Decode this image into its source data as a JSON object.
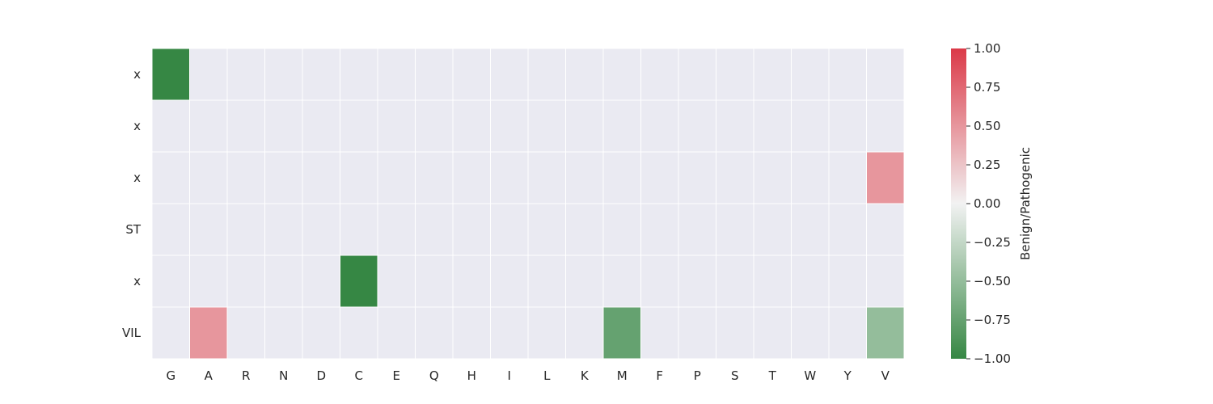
{
  "chart_data": {
    "type": "heatmap",
    "title": "",
    "xlabel": "",
    "ylabel": "",
    "x_categories": [
      "G",
      "A",
      "R",
      "N",
      "D",
      "C",
      "E",
      "Q",
      "H",
      "I",
      "L",
      "K",
      "M",
      "F",
      "P",
      "S",
      "T",
      "W",
      "Y",
      "V"
    ],
    "y_categories": [
      "x",
      "x",
      "x",
      "ST",
      "x",
      "VIL"
    ],
    "cells": [
      {
        "row": 0,
        "col": 0,
        "value": -1.0
      },
      {
        "row": 2,
        "col": 19,
        "value": 0.5
      },
      {
        "row": 4,
        "col": 5,
        "value": -1.0
      },
      {
        "row": 5,
        "col": 1,
        "value": 0.5
      },
      {
        "row": 5,
        "col": 12,
        "value": -0.75
      },
      {
        "row": 5,
        "col": 19,
        "value": -0.5
      }
    ],
    "empty_cell_color": "#EAEAF2",
    "colorbar": {
      "label": "Benign/Pathogenic",
      "vmin": -1.0,
      "vmax": 1.0,
      "ticks": [
        1.0,
        0.75,
        0.5,
        0.25,
        0.0,
        -0.25,
        -0.5,
        -0.75,
        -1.0
      ],
      "tick_labels": [
        "1.00",
        "0.75",
        "0.50",
        "0.25",
        "0.00",
        "−0.25",
        "−0.50",
        "−0.75",
        "−1.00"
      ],
      "colors": {
        "low": "#368744",
        "mid": "#F2F2F2",
        "high": "#DB3948"
      }
    }
  }
}
